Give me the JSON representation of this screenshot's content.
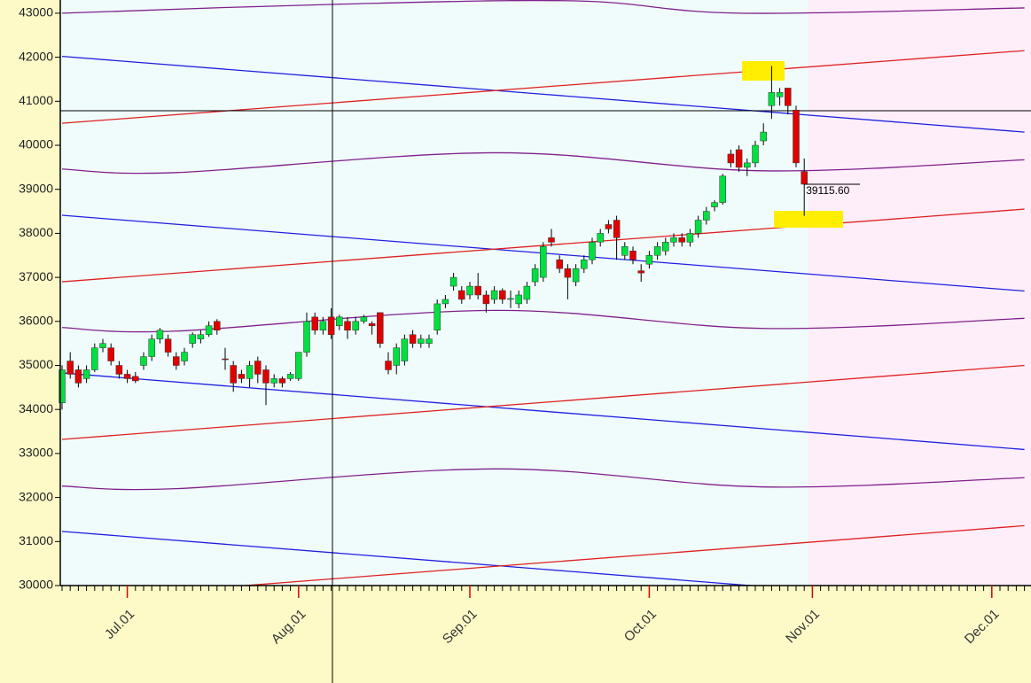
{
  "chart_data": {
    "type": "candlestick",
    "categories": [
      null,
      null,
      null,
      null,
      null,
      null,
      null,
      null,
      "Jul.01",
      null,
      null,
      null,
      null,
      null,
      null,
      null,
      null,
      null,
      null,
      null,
      null,
      null,
      null,
      null,
      null,
      null,
      null,
      null,
      null,
      "Aug.01",
      null,
      null,
      null,
      null,
      null,
      null,
      null,
      null,
      null,
      null,
      null,
      null,
      null,
      null,
      null,
      null,
      null,
      null,
      null,
      null,
      "Sep.01",
      null,
      null,
      null,
      null,
      null,
      null,
      null,
      null,
      null,
      null,
      null,
      null,
      null,
      null,
      null,
      null,
      null,
      null,
      null,
      null,
      null,
      "Oct.01",
      null,
      null,
      null,
      null,
      null,
      null,
      null,
      null,
      null,
      null,
      null,
      null,
      null,
      null,
      null,
      null,
      null,
      null,
      null,
      "Nov.01",
      null,
      null,
      null,
      null,
      null,
      null,
      null,
      null,
      null,
      null,
      null,
      null,
      null,
      null,
      null,
      null,
      null,
      null,
      null,
      null,
      null,
      "Dec.01",
      null,
      null,
      null,
      null
    ],
    "open": [
      34150,
      35100,
      34900,
      34700,
      34900,
      35400,
      35400,
      35000,
      34800,
      34750,
      35000,
      35200,
      35600,
      35600,
      35200,
      35100,
      35500,
      35600,
      35700,
      36000,
      35150,
      35000,
      34800,
      34700,
      35100,
      34900,
      34600,
      34700,
      34700,
      34700,
      35300,
      36100,
      35800,
      36100,
      35900,
      36000,
      35800,
      36000,
      35950,
      36200,
      35100,
      35000,
      35100,
      35700,
      35500,
      35500,
      35800,
      36400,
      36800,
      36700,
      36600,
      36800,
      36600,
      36500,
      36700,
      36500,
      36400,
      36500,
      36900,
      37000,
      37900,
      37400,
      37200,
      36900,
      37200,
      37400,
      37800,
      38200,
      38300,
      37500,
      37600,
      37150,
      37300,
      37500,
      37600,
      37800,
      37900,
      37800,
      38000,
      38300,
      38600,
      38700,
      39800,
      39900,
      39500,
      39600,
      40100,
      40900,
      41100,
      41300,
      40800,
      39400,
      null,
      null,
      null,
      null,
      null,
      null,
      null,
      null,
      null,
      null,
      null,
      null,
      null,
      null,
      null,
      null,
      null,
      null,
      null,
      null,
      null,
      null,
      null,
      null,
      null,
      null,
      null
    ],
    "high": [
      35000,
      35300,
      35000,
      35000,
      35500,
      35600,
      35500,
      35100,
      34900,
      34850,
      35300,
      35700,
      35850,
      35700,
      35300,
      35400,
      35750,
      35800,
      36000,
      36050,
      35400,
      35100,
      34900,
      35100,
      35200,
      35000,
      34800,
      34750,
      34850,
      35300,
      36200,
      36200,
      36100,
      36300,
      36150,
      36100,
      36100,
      36150,
      36000,
      36200,
      35300,
      35500,
      35700,
      35800,
      35700,
      35700,
      36500,
      36600,
      37100,
      36800,
      36900,
      37100,
      36700,
      36800,
      36750,
      36700,
      36700,
      36900,
      37300,
      37800,
      38100,
      37500,
      37300,
      37300,
      37500,
      37900,
      38100,
      38300,
      38400,
      37800,
      37700,
      37300,
      37600,
      37800,
      37900,
      38000,
      38000,
      38100,
      38400,
      38600,
      38750,
      39350,
      39900,
      40000,
      39700,
      40100,
      40500,
      41800,
      41300,
      41300,
      40900,
      39700,
      null,
      null,
      null,
      null,
      null,
      null,
      null,
      null,
      null,
      null,
      null,
      null,
      null,
      null,
      null,
      null,
      null,
      null,
      null,
      null,
      null,
      null,
      null,
      null,
      null,
      null,
      null
    ],
    "low": [
      34000,
      34700,
      34500,
      34600,
      34850,
      35300,
      35000,
      34700,
      34600,
      34600,
      34900,
      35100,
      35500,
      35200,
      34900,
      35000,
      35400,
      35500,
      35650,
      35700,
      34900,
      34400,
      34600,
      34500,
      34600,
      34100,
      34500,
      34500,
      34650,
      34650,
      35200,
      35700,
      35700,
      35600,
      35800,
      35600,
      35700,
      35950,
      35700,
      35400,
      34800,
      34800,
      35000,
      35400,
      35400,
      35400,
      35700,
      36300,
      36700,
      36400,
      36500,
      36500,
      36200,
      36400,
      36400,
      36300,
      36300,
      36400,
      36800,
      36900,
      37700,
      37100,
      36500,
      36800,
      37100,
      37300,
      37700,
      38000,
      37400,
      37400,
      37300,
      36900,
      37200,
      37400,
      37500,
      37700,
      37700,
      37700,
      37900,
      38200,
      38500,
      38650,
      39500,
      39400,
      39300,
      39500,
      40000,
      40600,
      40900,
      40700,
      39500,
      38400,
      null,
      null,
      null,
      null,
      null,
      null,
      null,
      null,
      null,
      null,
      null,
      null,
      null,
      null,
      null,
      null,
      null,
      null,
      null,
      null,
      null,
      null,
      null,
      null,
      null,
      null,
      null
    ],
    "close": [
      34900,
      34800,
      34600,
      34900,
      35400,
      35500,
      35100,
      34800,
      34700,
      34650,
      35200,
      35600,
      35800,
      35300,
      35000,
      35300,
      35700,
      35700,
      35900,
      35800,
      35140,
      34600,
      34700,
      35000,
      34800,
      34600,
      34700,
      34600,
      34800,
      35300,
      36000,
      35800,
      36000,
      35700,
      36100,
      35800,
      36000,
      36100,
      35900,
      35500,
      34900,
      35400,
      35600,
      35500,
      35600,
      35600,
      36400,
      36500,
      37000,
      36500,
      36800,
      36600,
      36400,
      36700,
      36500,
      36520,
      36600,
      36800,
      37200,
      37700,
      37800,
      37200,
      37000,
      37200,
      37400,
      37800,
      38000,
      38100,
      37900,
      37700,
      37400,
      37100,
      37500,
      37700,
      37800,
      37900,
      37800,
      38000,
      38300,
      38500,
      38700,
      39300,
      39600,
      39500,
      39600,
      40000,
      40300,
      41200,
      41200,
      40900,
      39600,
      39115.6,
      null,
      null,
      null,
      null,
      null,
      null,
      null,
      null,
      null,
      null,
      null,
      null,
      null,
      null,
      null,
      null,
      null,
      null,
      null,
      null,
      null,
      null,
      null,
      null,
      null,
      null,
      null
    ],
    "up_color": "#00e040",
    "down_color": "#e00000",
    "last_price": {
      "value": 39115.6,
      "label": "39115.60"
    },
    "ylim": [
      30000,
      43300
    ],
    "yticks": [
      30000,
      31000,
      32000,
      33000,
      34000,
      35000,
      36000,
      37000,
      38000,
      39000,
      40000,
      41000,
      42000,
      43000
    ],
    "overlays": [
      {
        "color": "#80208a",
        "x": [
          0,
          33,
          63,
          83,
          118
        ],
        "values": [
          43000,
          43200,
          43280,
          43000,
          43120
        ]
      },
      {
        "color": "#2020e0",
        "x": [
          0,
          118
        ],
        "values": [
          42020,
          40300
        ]
      },
      {
        "color": "#e02020",
        "x": [
          0,
          118
        ],
        "values": [
          40500,
          42150
        ]
      },
      {
        "color": "#80208a",
        "x": [
          0,
          14,
          53,
          86,
          118
        ],
        "values": [
          39460,
          39380,
          39830,
          39420,
          39670
        ]
      },
      {
        "color": "#2020e0",
        "x": [
          0,
          118
        ],
        "values": [
          38410,
          36690
        ]
      },
      {
        "color": "#e02020",
        "x": [
          0,
          118
        ],
        "values": [
          36900,
          38550
        ]
      },
      {
        "color": "#80208a",
        "x": [
          0,
          14,
          53,
          86,
          118
        ],
        "values": [
          35860,
          35780,
          36250,
          35840,
          36070
        ]
      },
      {
        "color": "#2020e0",
        "x": [
          0,
          118
        ],
        "values": [
          34830,
          33090
        ]
      },
      {
        "color": "#e02020",
        "x": [
          0,
          118
        ],
        "values": [
          33320,
          35000
        ]
      },
      {
        "color": "#80208a",
        "x": [
          0,
          14,
          53,
          86,
          118
        ],
        "values": [
          32260,
          32200,
          32650,
          32240,
          32450
        ]
      },
      {
        "color": "#2020e0",
        "x": [
          0,
          118
        ],
        "values": [
          31230,
          29510
        ]
      },
      {
        "color": "#e02020",
        "x": [
          0,
          118
        ],
        "values": [
          29680,
          31360
        ]
      }
    ]
  }
}
